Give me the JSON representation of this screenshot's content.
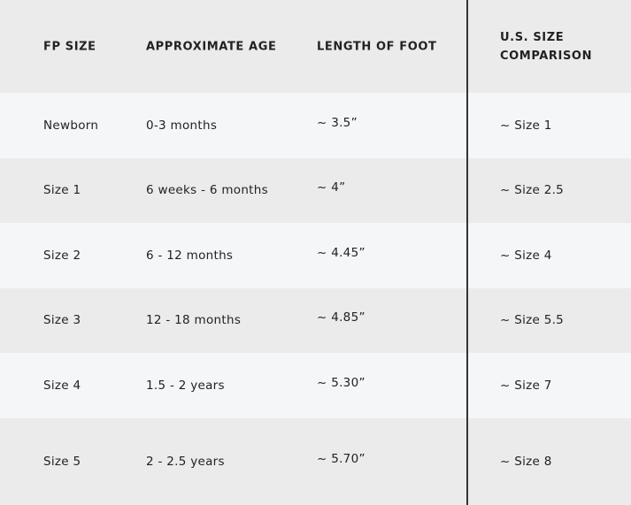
{
  "table": {
    "headers": [
      "FP SIZE",
      "APPROXIMATE AGE",
      "LENGTH OF FOOT",
      "U.S. SIZE",
      "COMPARISON"
    ],
    "rows": [
      [
        "Newborn",
        "0-3 months",
        "~ 3.5”",
        "~ Size 1"
      ],
      [
        "Size 1",
        "6 weeks - 6 months",
        "~ 4”",
        "~ Size 2.5"
      ],
      [
        "Size 2",
        "6 - 12 months",
        "~ 4.45”",
        "~ Size 4"
      ],
      [
        "Size 3",
        "12 - 18 months",
        "~ 4.85”",
        "~ Size 5.5"
      ],
      [
        "Size 4",
        "1.5 - 2 years",
        "~ 5.30”",
        "~ Size 7"
      ],
      [
        "Size 5",
        "2 - 2.5 years",
        "~ 5.70”",
        "~ Size 8"
      ]
    ]
  },
  "colors": {
    "header_bg": "#ebebeb",
    "row_light": "#f5f6f8",
    "row_dark": "#ebebeb",
    "divider": "#333333"
  }
}
